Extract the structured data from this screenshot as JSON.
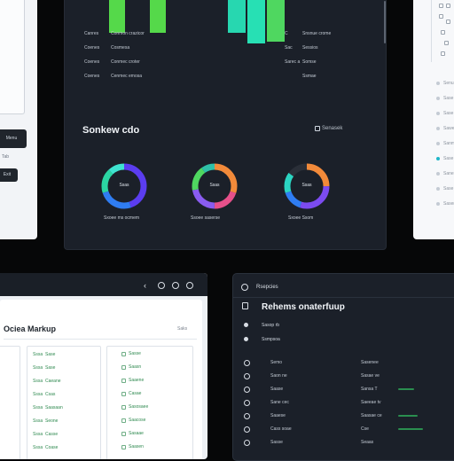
{
  "left_panel": {
    "btn_top": "Menu",
    "btn_bottom": "Exit",
    "side_label": "Tab"
  },
  "center_panel": {
    "title": "Sonkew cdo",
    "header_action": "Senasek",
    "table_rows": [
      {
        "c1": "Canres",
        "c2": "Conmon crazicor",
        "c3": "C",
        "c4": "Snsnue crome"
      },
      {
        "c1": "Coenes",
        "c2": "Cosmesa",
        "c3": "Sac",
        "c4": "Sessios"
      },
      {
        "c1": "Coenes",
        "c2": "Conmec croter",
        "c3": "Sarec a",
        "c4": "Somse"
      },
      {
        "c1": "Coenes",
        "c2": "Cenmec emosa",
        "c3": "",
        "c4": "Ssmae"
      }
    ],
    "donuts": [
      {
        "center": "Ssas",
        "caption": "Sxoee ms ocmem",
        "colors": [
          "#5b3df0",
          "#2f7df2",
          "#2bd5a2",
          "#3fe3d0"
        ],
        "fractions": [
          0.45,
          0.25,
          0.18,
          0.12
        ]
      },
      {
        "center": "Ssas",
        "caption": "Ssoee saserse",
        "colors": [
          "#f28a3a",
          "#e6508a",
          "#8a5cf0",
          "#4fd760",
          "#2fc0a8"
        ],
        "fractions": [
          0.3,
          0.2,
          0.22,
          0.18,
          0.1
        ]
      },
      {
        "center": "Ssas",
        "caption": "Sxoee Ssom",
        "colors": [
          "#f28a3a",
          "#7c4bf0",
          "#2f7df2",
          "#2bd5c2",
          "#2a2f38"
        ],
        "fractions": [
          0.25,
          0.3,
          0.15,
          0.15,
          0.15
        ]
      }
    ]
  },
  "right_panel": {
    "rows": [
      "Senu",
      "Sase",
      "Sase",
      "Sawe",
      "Sanm",
      "Sase",
      "Saner",
      "Sase",
      "Sasen"
    ]
  },
  "markup_window": {
    "title": "Ociea Markup",
    "corner_label": "Saks",
    "left_col": [
      {
        "a": "Sssa",
        "b": "Sase"
      },
      {
        "a": "Sssa",
        "b": "Sase"
      },
      {
        "a": "Sssa",
        "b": "Caeane"
      },
      {
        "a": "Sssa",
        "b": "Csas"
      },
      {
        "a": "Sssa",
        "b": "Saasaan"
      },
      {
        "a": "Sssa",
        "b": "Seone"
      },
      {
        "a": "Sssa",
        "b": "Casse"
      },
      {
        "a": "Sssa",
        "b": "Coase"
      }
    ],
    "right_col": [
      "Sasse",
      "Saasn",
      "Saaene",
      "Casae",
      "Sasosaee",
      "Saacose",
      "Sasaae",
      "Saasen"
    ]
  },
  "schedule_window": {
    "tab_label": "Rsepcies",
    "title": "Rehems onaterfuup",
    "sub_items": [
      "Sasop rb",
      "Ssmpsoa"
    ],
    "rows": [
      {
        "left": "Semo",
        "right": "Sasenee"
      },
      {
        "left": "Saon ne",
        "right": "Sasae ve"
      },
      {
        "left": "Saase",
        "right": "Sansa T"
      },
      {
        "left": "Sane cec",
        "right": "Saeeae tv"
      },
      {
        "left": "Saaese",
        "right": "Saasae ce"
      },
      {
        "left": "Cass soae",
        "right": "Cse"
      },
      {
        "left": "Sasse",
        "right": "Seaas"
      }
    ]
  },
  "colors": {
    "accent_green": "#4fe35e",
    "accent_teal": "#27e0b4",
    "panel_dark": "#1b2029",
    "panel_light": "#f2f4f7"
  }
}
